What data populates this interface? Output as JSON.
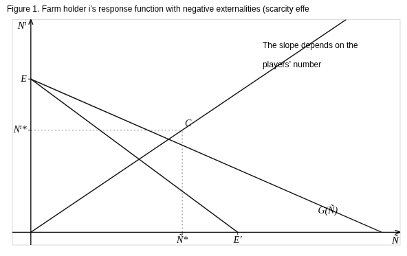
{
  "chart_data": {
    "type": "line",
    "title": "Figure 1. Farm holder i’s response function with negative externalities (scarcity effe",
    "xlabel": "Ñ",
    "ylabel": "Nⁱ",
    "xlim": [
      -0.5,
      10
    ],
    "ylim": [
      -0.6,
      10
    ],
    "grid": false,
    "tick_labels": false,
    "series": [
      {
        "color": "#1a1a1a",
        "line_style": "solid",
        "x": [
          0,
          8.541666666666666
        ],
        "values": [
          0,
          10
        ]
      },
      {
        "color": "#1a1a1a",
        "line_style": "solid",
        "x": [
          0,
          5.6
        ],
        "values": [
          7.2,
          0
        ]
      },
      {
        "color": "#1a1a1a",
        "line_style": "solid",
        "x": [
          0,
          9.5
        ],
        "values": [
          7.2,
          0
        ]
      },
      {
        "color": "#777777",
        "line_style": "dotted",
        "x": [
          4.1,
          4.1
        ],
        "values": [
          0,
          4.8
        ]
      },
      {
        "color": "#777777",
        "line_style": "dotted",
        "x": [
          0,
          4.1
        ],
        "values": [
          4.8,
          4.8
        ]
      }
    ],
    "annotations": [
      {
        "text": "E",
        "x": 0,
        "y": 7.2
      },
      {
        "text": "Nⁱ*",
        "x": 0,
        "y": 4.8
      },
      {
        "text": "Ñ*",
        "x": 4.1,
        "y": 0
      },
      {
        "text": "E′",
        "x": 5.6,
        "y": 0
      },
      {
        "text": "C",
        "x": 4.1,
        "y": 4.8
      },
      {
        "text": "G(Ñ)",
        "x": 7.7,
        "y": 0.7
      },
      {
        "text": "The slope depends on the",
        "x": 6.2,
        "y": 8.5
      },
      {
        "text": "players’ number",
        "x": 6.2,
        "y": 7.6
      }
    ]
  }
}
